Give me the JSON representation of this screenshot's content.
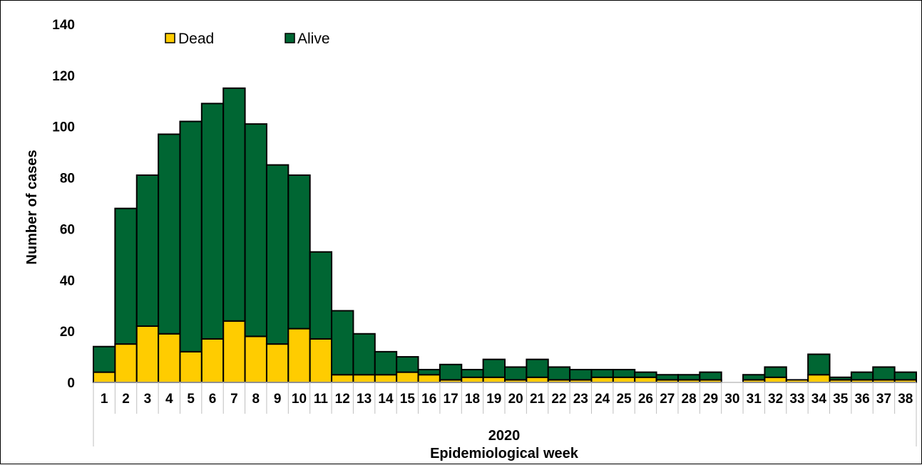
{
  "chart_data": {
    "type": "bar",
    "stacked": true,
    "categories": [
      "1",
      "2",
      "3",
      "4",
      "5",
      "6",
      "7",
      "8",
      "9",
      "10",
      "11",
      "12",
      "13",
      "14",
      "15",
      "16",
      "17",
      "18",
      "19",
      "20",
      "21",
      "22",
      "23",
      "24",
      "25",
      "26",
      "27",
      "28",
      "29",
      "30",
      "31",
      "32",
      "33",
      "34",
      "35",
      "36",
      "37",
      "38"
    ],
    "group_label": "2020",
    "xlabel": "Epidemiological week",
    "ylabel": "Number of cases",
    "ylim": [
      0,
      140
    ],
    "yticks": [
      0,
      20,
      40,
      60,
      80,
      100,
      120,
      140
    ],
    "grid": false,
    "legend_position": "top-left",
    "series": [
      {
        "name": "Dead",
        "color": "#FFCC00",
        "values": [
          4,
          15,
          22,
          19,
          12,
          17,
          24,
          18,
          15,
          21,
          17,
          3,
          3,
          3,
          4,
          3,
          1,
          2,
          2,
          1,
          2,
          1,
          1,
          2,
          2,
          2,
          1,
          1,
          1,
          0,
          1,
          2,
          1,
          3,
          1,
          1,
          1,
          1
        ]
      },
      {
        "name": "Alive",
        "color": "#006633",
        "values": [
          10,
          53,
          59,
          78,
          90,
          92,
          91,
          83,
          70,
          60,
          34,
          25,
          16,
          9,
          6,
          2,
          6,
          3,
          7,
          5,
          7,
          5,
          4,
          3,
          3,
          2,
          2,
          2,
          3,
          0,
          2,
          4,
          0,
          8,
          1,
          3,
          5,
          3
        ]
      }
    ]
  }
}
